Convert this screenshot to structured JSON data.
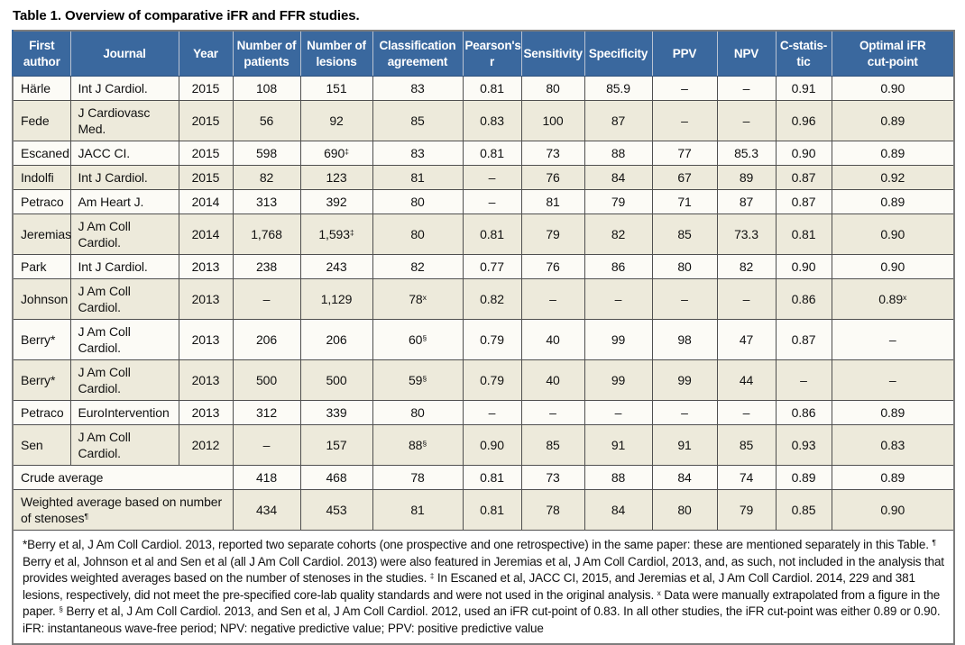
{
  "title": "Table 1. Overview of comparative iFR and FFR studies.",
  "colors": {
    "header_bg": "#3A689E",
    "header_text": "#FFFFFF",
    "row_white": "#FCFBF6",
    "row_beige": "#EDEADB",
    "grid_line": "#4F4F4F",
    "outer_border": "#7D7D7D"
  },
  "table": {
    "column_headers": [
      "First\nauthor",
      "Journal",
      "Year",
      "Number of\npatients",
      "Number of\nlesions",
      "Classification\nagreement",
      "Pearson's\nr",
      "Sensitivity",
      "Specificity",
      "PPV",
      "NPV",
      "C-statis-\ntic",
      "Optimal iFR\ncut-point"
    ],
    "rows": [
      [
        "Härle",
        "Int J Cardiol.",
        "2015",
        "108",
        "151",
        "83",
        "0.81",
        "80",
        "85.9",
        "–",
        "–",
        "0.91",
        "0.90"
      ],
      [
        "Fede",
        "J Cardiovasc Med.",
        "2015",
        "56",
        "92",
        "85",
        "0.83",
        "100",
        "87",
        "–",
        "–",
        "0.96",
        "0.89"
      ],
      [
        "Escaned",
        "JACC CI.",
        "2015",
        "598",
        "690^‡",
        "83",
        "0.81",
        "73",
        "88",
        "77",
        "85.3",
        "0.90",
        "0.89"
      ],
      [
        "Indolfi",
        "Int J Cardiol.",
        "2015",
        "82",
        "123",
        "81",
        "–",
        "76",
        "84",
        "67",
        "89",
        "0.87",
        "0.92"
      ],
      [
        "Petraco",
        "Am Heart J.",
        "2014",
        "313",
        "392",
        "80",
        "–",
        "81",
        "79",
        "71",
        "87",
        "0.87",
        "0.89"
      ],
      [
        "Jeremias",
        "J Am Coll Cardiol.",
        "2014",
        "1,768",
        "1,593^‡",
        "80",
        "0.81",
        "79",
        "82",
        "85",
        "73.3",
        "0.81",
        "0.90"
      ],
      [
        "Park",
        "Int J Cardiol.",
        "2013",
        "238",
        "243",
        "82",
        "0.77",
        "76",
        "86",
        "80",
        "82",
        "0.90",
        "0.90"
      ],
      [
        "Johnson",
        "J Am Coll Cardiol.",
        "2013",
        "–",
        "1,129",
        "78^x",
        "0.82",
        "–",
        "–",
        "–",
        "–",
        "0.86",
        "0.89^x"
      ],
      [
        "Berry*",
        "J Am Coll Cardiol.",
        "2013",
        "206",
        "206",
        "60^§",
        "0.79",
        "40",
        "99",
        "98",
        "47",
        "0.87",
        "–"
      ],
      [
        "Berry*",
        "J Am Coll Cardiol.",
        "2013",
        "500",
        "500",
        "59^§",
        "0.79",
        "40",
        "99",
        "99",
        "44",
        "–",
        "–"
      ],
      [
        "Petraco",
        "EuroIntervention",
        "2013",
        "312",
        "339",
        "80",
        "–",
        "–",
        "–",
        "–",
        "–",
        "0.86",
        "0.89"
      ],
      [
        "Sen",
        "J Am Coll Cardiol.",
        "2012",
        "–",
        "157",
        "88^§",
        "0.90",
        "85",
        "91",
        "91",
        "85",
        "0.93",
        "0.83"
      ]
    ],
    "summary_rows": [
      {
        "label": "Crude average",
        "values": [
          "418",
          "468",
          "78",
          "0.81",
          "73",
          "88",
          "84",
          "74",
          "0.89",
          "0.89"
        ]
      },
      {
        "label": "Weighted average based on number of stenoses^¶",
        "values": [
          "434",
          "453",
          "81",
          "0.81",
          "78",
          "84",
          "80",
          "79",
          "0.85",
          "0.90"
        ]
      }
    ],
    "footnote": "*Berry et al, J Am Coll Cardiol. 2013, reported two separate cohorts (one prospective and one retrospective) in the same paper: these are mentioned separately in this Table. ^¶ Berry et al, Johnson et al and Sen et al (all J Am Coll Cardiol. 2013) were also featured in Jeremias et al, J Am Coll Cardiol, 2013, and, as such, not included in the analysis that provides weighted averages based on the number of stenoses in the studies. ^‡ In Escaned et al, JACC CI, 2015, and Jeremias et al, J Am Coll Cardiol. 2014, 229 and 381 lesions, respectively, did not meet the pre-specified core-lab quality standards and were not used in the original analysis. ^x Data were manually extrapolated from a figure in the paper. ^§ Berry et al, J Am Coll Cardiol. 2013, and Sen et al, J Am Coll Cardiol. 2012, used an iFR cut-point of 0.83. In all other studies, the iFR cut-point was either 0.89 or 0.90. iFR: instantaneous wave-free period; NPV: negative predictive value; PPV: positive predictive value"
  }
}
